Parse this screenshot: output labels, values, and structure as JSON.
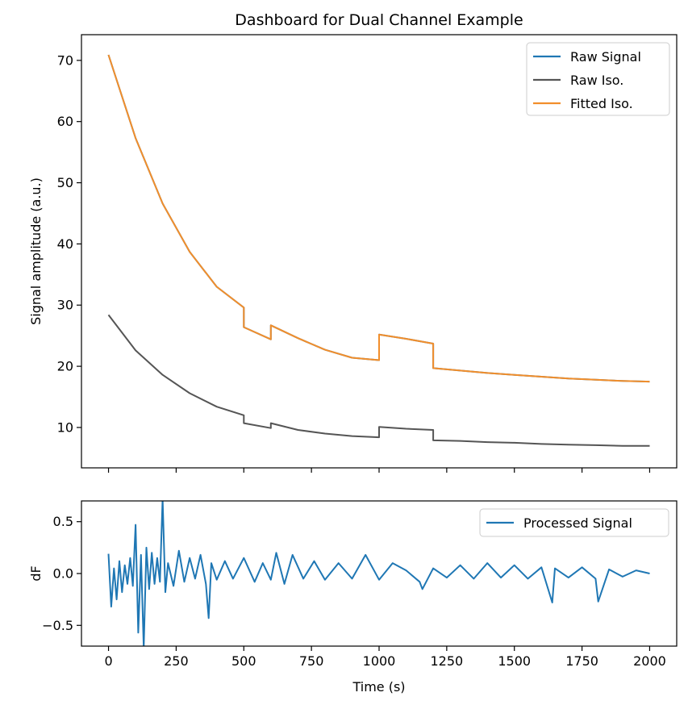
{
  "chart_data": [
    {
      "type": "line",
      "title": "Dashboard for Dual Channel Example",
      "xlabel": "",
      "ylabel": "Signal amplitude (a.u.)",
      "xlim": [
        -100,
        2100
      ],
      "ylim": [
        3.4,
        74.2
      ],
      "xticks": [
        0,
        250,
        500,
        750,
        1000,
        1250,
        1500,
        1750,
        2000
      ],
      "xtick_labels_visible": false,
      "yticks": [
        10,
        20,
        30,
        40,
        50,
        60,
        70
      ],
      "ytick_labels": [
        "10",
        "20",
        "30",
        "40",
        "50",
        "60",
        "70"
      ],
      "legend": {
        "position": "upper-right",
        "entries": [
          "Raw Signal",
          "Raw Iso.",
          "Fitted Iso."
        ]
      },
      "series": [
        {
          "name": "Raw Signal",
          "color": "#1f77b4",
          "x": [
            0,
            100,
            200,
            300,
            400,
            500,
            500,
            600,
            600,
            700,
            800,
            900,
            1000,
            1000,
            1100,
            1200,
            1200,
            1300,
            1400,
            1500,
            1600,
            1700,
            1800,
            1900,
            2000
          ],
          "y": [
            70.9,
            57.3,
            46.6,
            38.7,
            33.0,
            29.6,
            26.4,
            24.4,
            26.7,
            24.6,
            22.7,
            21.4,
            21.0,
            25.2,
            24.5,
            23.7,
            19.7,
            19.3,
            18.9,
            18.6,
            18.3,
            18.0,
            17.8,
            17.6,
            17.5
          ]
        },
        {
          "name": "Raw Iso.",
          "color": "#555555",
          "x": [
            0,
            100,
            200,
            300,
            400,
            500,
            500,
            600,
            600,
            700,
            800,
            900,
            1000,
            1000,
            1100,
            1200,
            1200,
            1300,
            1400,
            1500,
            1600,
            1700,
            1800,
            1900,
            2000
          ],
          "y": [
            28.4,
            22.6,
            18.6,
            15.6,
            13.4,
            12.0,
            10.7,
            9.9,
            10.7,
            9.6,
            9.0,
            8.6,
            8.4,
            10.1,
            9.8,
            9.6,
            7.9,
            7.8,
            7.6,
            7.5,
            7.3,
            7.2,
            7.1,
            7.0,
            7.0
          ]
        },
        {
          "name": "Fitted Iso.",
          "color": "#f28e2b",
          "x": [
            0,
            100,
            200,
            300,
            400,
            500,
            500,
            600,
            600,
            700,
            800,
            900,
            1000,
            1000,
            1100,
            1200,
            1200,
            1300,
            1400,
            1500,
            1600,
            1700,
            1800,
            1900,
            2000
          ],
          "y": [
            70.9,
            57.3,
            46.6,
            38.7,
            33.0,
            29.6,
            26.4,
            24.4,
            26.7,
            24.6,
            22.7,
            21.4,
            21.0,
            25.2,
            24.5,
            23.7,
            19.7,
            19.3,
            18.9,
            18.6,
            18.3,
            18.0,
            17.8,
            17.6,
            17.5
          ]
        }
      ]
    },
    {
      "type": "line",
      "title": "",
      "xlabel": "Time (s)",
      "ylabel": "dF",
      "xlim": [
        -100,
        2100
      ],
      "ylim": [
        -0.7,
        0.7
      ],
      "xticks": [
        0,
        250,
        500,
        750,
        1000,
        1250,
        1500,
        1750,
        2000
      ],
      "xtick_labels": [
        "0",
        "250",
        "500",
        "750",
        "1000",
        "1250",
        "1500",
        "1750",
        "2000"
      ],
      "yticks": [
        -0.5,
        0.0,
        0.5
      ],
      "ytick_labels": [
        "−0.5",
        "0.0",
        "0.5"
      ],
      "legend": {
        "position": "upper-right",
        "entries": [
          "Processed Signal"
        ]
      },
      "series": [
        {
          "name": "Processed Signal",
          "color": "#1f77b4",
          "x": [
            0,
            10,
            20,
            30,
            40,
            50,
            60,
            70,
            80,
            90,
            100,
            110,
            120,
            130,
            140,
            150,
            160,
            170,
            180,
            190,
            200,
            210,
            220,
            240,
            260,
            280,
            300,
            320,
            340,
            360,
            370,
            380,
            400,
            430,
            460,
            500,
            540,
            570,
            600,
            620,
            650,
            680,
            720,
            760,
            800,
            850,
            900,
            950,
            1000,
            1050,
            1100,
            1150,
            1160,
            1200,
            1250,
            1300,
            1350,
            1400,
            1450,
            1500,
            1550,
            1600,
            1640,
            1650,
            1700,
            1750,
            1800,
            1810,
            1850,
            1900,
            1950,
            2000
          ],
          "y": [
            0.19,
            -0.32,
            0.05,
            -0.25,
            0.12,
            -0.18,
            0.08,
            -0.1,
            0.15,
            -0.12,
            0.47,
            -0.57,
            0.18,
            -0.72,
            0.25,
            -0.15,
            0.2,
            -0.1,
            0.15,
            -0.08,
            0.72,
            -0.18,
            0.1,
            -0.12,
            0.22,
            -0.08,
            0.15,
            -0.05,
            0.18,
            -0.1,
            -0.43,
            0.1,
            -0.06,
            0.12,
            -0.05,
            0.15,
            -0.08,
            0.1,
            -0.06,
            0.2,
            -0.1,
            0.18,
            -0.05,
            0.12,
            -0.06,
            0.1,
            -0.05,
            0.18,
            -0.06,
            0.1,
            0.03,
            -0.08,
            -0.15,
            0.05,
            -0.04,
            0.08,
            -0.05,
            0.1,
            -0.04,
            0.08,
            -0.05,
            0.06,
            -0.28,
            0.05,
            -0.04,
            0.06,
            -0.05,
            -0.27,
            0.04,
            -0.03,
            0.03,
            0.0
          ]
        }
      ]
    }
  ]
}
